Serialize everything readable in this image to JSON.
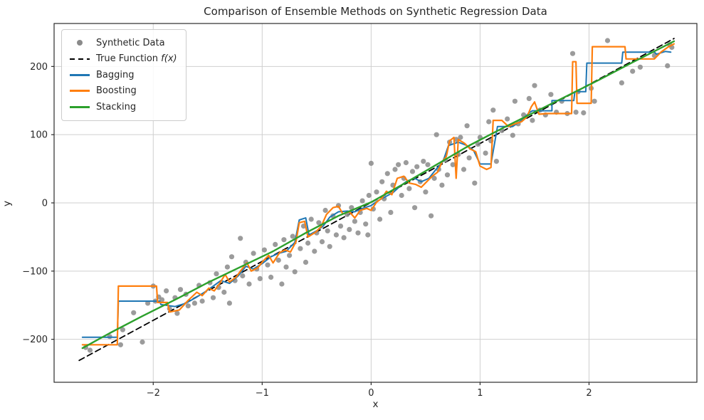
{
  "figure": {
    "title": "Comparison of Ensemble Methods on Synthetic Regression Data",
    "xlabel": "x",
    "ylabel": "y"
  },
  "legend": {
    "position": "upper left",
    "items": [
      {
        "label": "Synthetic Data",
        "math": "",
        "marker": "dot",
        "color": "#8a8a8a"
      },
      {
        "label": "True Function ",
        "math": "f(x)",
        "marker": "dashed",
        "color": "#000000"
      },
      {
        "label": "Bagging",
        "math": "",
        "marker": "line",
        "color": "#1f77b4"
      },
      {
        "label": "Boosting",
        "math": "",
        "marker": "line",
        "color": "#ff7f0e"
      },
      {
        "label": "Stacking",
        "math": "",
        "marker": "line",
        "color": "#2ca02c"
      }
    ]
  },
  "chart_data": {
    "type": "scatter",
    "title": "Comparison of Ensemble Methods on Synthetic Regression Data",
    "xlabel": "x",
    "ylabel": "y",
    "xlim": [
      -2.91,
      2.99
    ],
    "ylim": [
      -263,
      263
    ],
    "xticks": [
      -2,
      -1,
      0,
      1,
      2
    ],
    "yticks": [
      -200,
      -100,
      0,
      100,
      200
    ],
    "grid": true,
    "grid_color": "#cfcfcf",
    "spine_color": "#2b2b2b",
    "legend_position": "upper left",
    "scatter": {
      "name": "Synthetic Data",
      "color": "#8a8a8a",
      "alpha": 0.85,
      "marker_radius": 3.6,
      "points": [
        [
          -2.62,
          -212
        ],
        [
          -2.58,
          -216
        ],
        [
          -2.4,
          -196
        ],
        [
          -2.3,
          -208
        ],
        [
          -2.28,
          -186
        ],
        [
          -2.18,
          -161
        ],
        [
          -2.1,
          -204
        ],
        [
          -2.05,
          -147
        ],
        [
          -2.0,
          -122
        ],
        [
          -1.98,
          -144
        ],
        [
          -1.95,
          -138
        ],
        [
          -1.92,
          -142
        ],
        [
          -1.88,
          -129
        ],
        [
          -1.85,
          -155
        ],
        [
          -1.8,
          -139
        ],
        [
          -1.78,
          -162
        ],
        [
          -1.75,
          -127
        ],
        [
          -1.7,
          -134
        ],
        [
          -1.68,
          -151
        ],
        [
          -1.62,
          -147
        ],
        [
          -1.58,
          -121
        ],
        [
          -1.55,
          -144
        ],
        [
          -1.48,
          -117
        ],
        [
          -1.45,
          -139
        ],
        [
          -1.42,
          -104
        ],
        [
          -1.4,
          -124
        ],
        [
          -1.35,
          -131
        ],
        [
          -1.32,
          -94
        ],
        [
          -1.3,
          -147
        ],
        [
          -1.28,
          -79
        ],
        [
          -1.25,
          -114
        ],
        [
          -1.2,
          -52
        ],
        [
          -1.18,
          -107
        ],
        [
          -1.15,
          -87
        ],
        [
          -1.12,
          -119
        ],
        [
          -1.08,
          -74
        ],
        [
          -1.05,
          -97
        ],
        [
          -1.02,
          -111
        ],
        [
          -0.98,
          -69
        ],
        [
          -0.95,
          -91
        ],
        [
          -0.92,
          -109
        ],
        [
          -0.88,
          -61
        ],
        [
          -0.85,
          -84
        ],
        [
          -0.82,
          -119
        ],
        [
          -0.8,
          -54
        ],
        [
          -0.78,
          -94
        ],
        [
          -0.75,
          -77
        ],
        [
          -0.72,
          -49
        ],
        [
          -0.7,
          -101
        ],
        [
          -0.65,
          -67
        ],
        [
          -0.62,
          -34
        ],
        [
          -0.6,
          -87
        ],
        [
          -0.58,
          -59
        ],
        [
          -0.55,
          -24
        ],
        [
          -0.52,
          -71
        ],
        [
          -0.5,
          -44
        ],
        [
          -0.48,
          -29
        ],
        [
          -0.45,
          -57
        ],
        [
          -0.42,
          -11
        ],
        [
          -0.4,
          -41
        ],
        [
          -0.38,
          -64
        ],
        [
          -0.35,
          -19
        ],
        [
          -0.32,
          -47
        ],
        [
          -0.3,
          -4
        ],
        [
          -0.28,
          -34
        ],
        [
          -0.25,
          -51
        ],
        [
          -0.22,
          -17
        ],
        [
          -0.2,
          -39
        ],
        [
          -0.18,
          -7
        ],
        [
          -0.15,
          -27
        ],
        [
          -0.12,
          -44
        ],
        [
          -0.1,
          -14
        ],
        [
          -0.08,
          3
        ],
        [
          -0.05,
          -31
        ],
        [
          -0.03,
          -47
        ],
        [
          -0.02,
          11
        ],
        [
          0.0,
          58
        ],
        [
          0.02,
          -9
        ],
        [
          0.05,
          16
        ],
        [
          0.08,
          -24
        ],
        [
          0.1,
          31
        ],
        [
          0.12,
          6
        ],
        [
          0.15,
          43
        ],
        [
          0.18,
          -14
        ],
        [
          0.2,
          26
        ],
        [
          0.22,
          49
        ],
        [
          0.25,
          56
        ],
        [
          0.28,
          11
        ],
        [
          0.3,
          36
        ],
        [
          0.32,
          59
        ],
        [
          0.35,
          21
        ],
        [
          0.38,
          46
        ],
        [
          0.4,
          -7
        ],
        [
          0.42,
          53
        ],
        [
          0.45,
          31
        ],
        [
          0.48,
          61
        ],
        [
          0.5,
          16
        ],
        [
          0.52,
          56
        ],
        [
          0.55,
          -19
        ],
        [
          0.58,
          36
        ],
        [
          0.6,
          100
        ],
        [
          0.62,
          49
        ],
        [
          0.65,
          26
        ],
        [
          0.68,
          63
        ],
        [
          0.7,
          41
        ],
        [
          0.72,
          89
        ],
        [
          0.75,
          56
        ],
        [
          0.78,
          93
        ],
        [
          0.8,
          71
        ],
        [
          0.82,
          96
        ],
        [
          0.85,
          49
        ],
        [
          0.88,
          113
        ],
        [
          0.9,
          66
        ],
        [
          0.95,
          29
        ],
        [
          0.98,
          86
        ],
        [
          1.0,
          96
        ],
        [
          1.05,
          73
        ],
        [
          1.08,
          119
        ],
        [
          1.1,
          91
        ],
        [
          1.12,
          136
        ],
        [
          1.15,
          61
        ],
        [
          1.2,
          106
        ],
        [
          1.25,
          123
        ],
        [
          1.3,
          99
        ],
        [
          1.32,
          149
        ],
        [
          1.35,
          116
        ],
        [
          1.4,
          129
        ],
        [
          1.45,
          153
        ],
        [
          1.48,
          121
        ],
        [
          1.5,
          172
        ],
        [
          1.55,
          136
        ],
        [
          1.6,
          129
        ],
        [
          1.65,
          159
        ],
        [
          1.7,
          133
        ],
        [
          1.75,
          149
        ],
        [
          1.8,
          131
        ],
        [
          1.85,
          219
        ],
        [
          1.88,
          133
        ],
        [
          1.9,
          163
        ],
        [
          1.95,
          132
        ],
        [
          2.02,
          168
        ],
        [
          2.05,
          149
        ],
        [
          2.17,
          238
        ],
        [
          2.3,
          176
        ],
        [
          2.4,
          193
        ],
        [
          2.47,
          199
        ],
        [
          2.6,
          216
        ],
        [
          2.72,
          201
        ],
        [
          2.74,
          232
        ],
        [
          2.76,
          228
        ]
      ]
    },
    "series": [
      {
        "name": "True Function f(x)",
        "style": "dashed",
        "color": "#000000",
        "width": 1.8,
        "points": [
          [
            -2.68,
            -231
          ],
          [
            2.78,
            241
          ]
        ]
      },
      {
        "name": "Bagging",
        "style": "solid",
        "color": "#1f77b4",
        "width": 2,
        "points": [
          [
            -2.65,
            -197
          ],
          [
            -2.33,
            -197
          ],
          [
            -2.32,
            -144
          ],
          [
            -1.94,
            -144
          ],
          [
            -1.93,
            -149
          ],
          [
            -1.8,
            -152
          ],
          [
            -1.7,
            -147
          ],
          [
            -1.6,
            -138
          ],
          [
            -1.52,
            -130
          ],
          [
            -1.45,
            -122
          ],
          [
            -1.38,
            -114
          ],
          [
            -1.3,
            -118
          ],
          [
            -1.22,
            -107
          ],
          [
            -1.15,
            -93
          ],
          [
            -1.08,
            -97
          ],
          [
            -1.0,
            -89
          ],
          [
            -0.92,
            -79
          ],
          [
            -0.85,
            -74
          ],
          [
            -0.78,
            -71
          ],
          [
            -0.7,
            -58
          ],
          [
            -0.66,
            -25
          ],
          [
            -0.6,
            -22
          ],
          [
            -0.57,
            -47
          ],
          [
            -0.5,
            -41
          ],
          [
            -0.44,
            -34
          ],
          [
            -0.38,
            -21
          ],
          [
            -0.3,
            -13
          ],
          [
            -0.22,
            -12
          ],
          [
            -0.15,
            -13
          ],
          [
            -0.08,
            -8
          ],
          [
            0,
            -4
          ],
          [
            0.06,
            3
          ],
          [
            0.13,
            9
          ],
          [
            0.2,
            15
          ],
          [
            0.27,
            25
          ],
          [
            0.33,
            32
          ],
          [
            0.4,
            36
          ],
          [
            0.46,
            31
          ],
          [
            0.53,
            36
          ],
          [
            0.6,
            50
          ],
          [
            0.66,
            61
          ],
          [
            0.71,
            84
          ],
          [
            0.8,
            89
          ],
          [
            0.88,
            84
          ],
          [
            0.94,
            77
          ],
          [
            1.0,
            57
          ],
          [
            1.1,
            57
          ],
          [
            1.16,
            112
          ],
          [
            1.3,
            112
          ],
          [
            1.38,
            121
          ],
          [
            1.45,
            132
          ],
          [
            1.48,
            135
          ],
          [
            1.66,
            135
          ],
          [
            1.66,
            150
          ],
          [
            1.86,
            150
          ],
          [
            1.87,
            163
          ],
          [
            1.97,
            163
          ],
          [
            1.98,
            205
          ],
          [
            2.3,
            205
          ],
          [
            2.31,
            221
          ],
          [
            2.6,
            221
          ],
          [
            2.62,
            218
          ],
          [
            2.7,
            222
          ],
          [
            2.75,
            221
          ]
        ]
      },
      {
        "name": "Boosting",
        "style": "solid",
        "color": "#ff7f0e",
        "width": 2.2,
        "points": [
          [
            -2.65,
            -208
          ],
          [
            -2.33,
            -208
          ],
          [
            -2.32,
            -122
          ],
          [
            -1.97,
            -122
          ],
          [
            -1.96,
            -146
          ],
          [
            -1.87,
            -146
          ],
          [
            -1.85,
            -160
          ],
          [
            -1.76,
            -157
          ],
          [
            -1.68,
            -143
          ],
          [
            -1.6,
            -131
          ],
          [
            -1.55,
            -136
          ],
          [
            -1.49,
            -125
          ],
          [
            -1.44,
            -129
          ],
          [
            -1.39,
            -118
          ],
          [
            -1.34,
            -105
          ],
          [
            -1.3,
            -116
          ],
          [
            -1.24,
            -109
          ],
          [
            -1.19,
            -98
          ],
          [
            -1.14,
            -88
          ],
          [
            -1.1,
            -100
          ],
          [
            -1.04,
            -95
          ],
          [
            -0.99,
            -85
          ],
          [
            -0.94,
            -77
          ],
          [
            -0.9,
            -88
          ],
          [
            -0.84,
            -73
          ],
          [
            -0.79,
            -69
          ],
          [
            -0.74,
            -72
          ],
          [
            -0.69,
            -57
          ],
          [
            -0.66,
            -29
          ],
          [
            -0.61,
            -27
          ],
          [
            -0.58,
            -50
          ],
          [
            -0.51,
            -43
          ],
          [
            -0.46,
            -35
          ],
          [
            -0.41,
            -17
          ],
          [
            -0.35,
            -7
          ],
          [
            -0.3,
            -5
          ],
          [
            -0.26,
            -16
          ],
          [
            -0.2,
            -13
          ],
          [
            -0.15,
            -22
          ],
          [
            -0.1,
            -11
          ],
          [
            -0.04,
            -8
          ],
          [
            0,
            -11
          ],
          [
            0.05,
            1
          ],
          [
            0.1,
            7
          ],
          [
            0.14,
            17
          ],
          [
            0.19,
            12
          ],
          [
            0.24,
            36
          ],
          [
            0.3,
            39
          ],
          [
            0.35,
            29
          ],
          [
            0.41,
            27
          ],
          [
            0.46,
            23
          ],
          [
            0.51,
            31
          ],
          [
            0.56,
            39
          ],
          [
            0.61,
            45
          ],
          [
            0.65,
            60
          ],
          [
            0.69,
            68
          ],
          [
            0.72,
            91
          ],
          [
            0.76,
            96
          ],
          [
            0.78,
            36
          ],
          [
            0.8,
            93
          ],
          [
            0.86,
            87
          ],
          [
            0.91,
            79
          ],
          [
            0.96,
            75
          ],
          [
            1.0,
            54
          ],
          [
            1.06,
            49
          ],
          [
            1.1,
            52
          ],
          [
            1.12,
            121
          ],
          [
            1.2,
            121
          ],
          [
            1.26,
            112
          ],
          [
            1.32,
            116
          ],
          [
            1.38,
            119
          ],
          [
            1.43,
            126
          ],
          [
            1.47,
            141
          ],
          [
            1.5,
            148
          ],
          [
            1.54,
            130
          ],
          [
            1.62,
            131
          ],
          [
            1.84,
            131
          ],
          [
            1.85,
            207
          ],
          [
            1.88,
            207
          ],
          [
            1.89,
            146
          ],
          [
            2.02,
            146
          ],
          [
            2.03,
            229
          ],
          [
            2.33,
            229
          ],
          [
            2.34,
            211
          ],
          [
            2.6,
            211
          ],
          [
            2.66,
            221
          ],
          [
            2.73,
            229
          ],
          [
            2.78,
            233
          ]
        ]
      },
      {
        "name": "Stacking",
        "style": "solid",
        "color": "#2ca02c",
        "width": 2.4,
        "points": [
          [
            -2.65,
            -213
          ],
          [
            -2.4,
            -191
          ],
          [
            -2.1,
            -166
          ],
          [
            -1.8,
            -142
          ],
          [
            -1.5,
            -117
          ],
          [
            -1.2,
            -94
          ],
          [
            -0.9,
            -71
          ],
          [
            -0.6,
            -44
          ],
          [
            -0.3,
            -19
          ],
          [
            0,
            1
          ],
          [
            0.3,
            28
          ],
          [
            0.6,
            56
          ],
          [
            0.9,
            84
          ],
          [
            1.2,
            109
          ],
          [
            1.5,
            133
          ],
          [
            1.8,
            157
          ],
          [
            2.1,
            181
          ],
          [
            2.4,
            206
          ],
          [
            2.78,
            237
          ]
        ]
      }
    ]
  }
}
